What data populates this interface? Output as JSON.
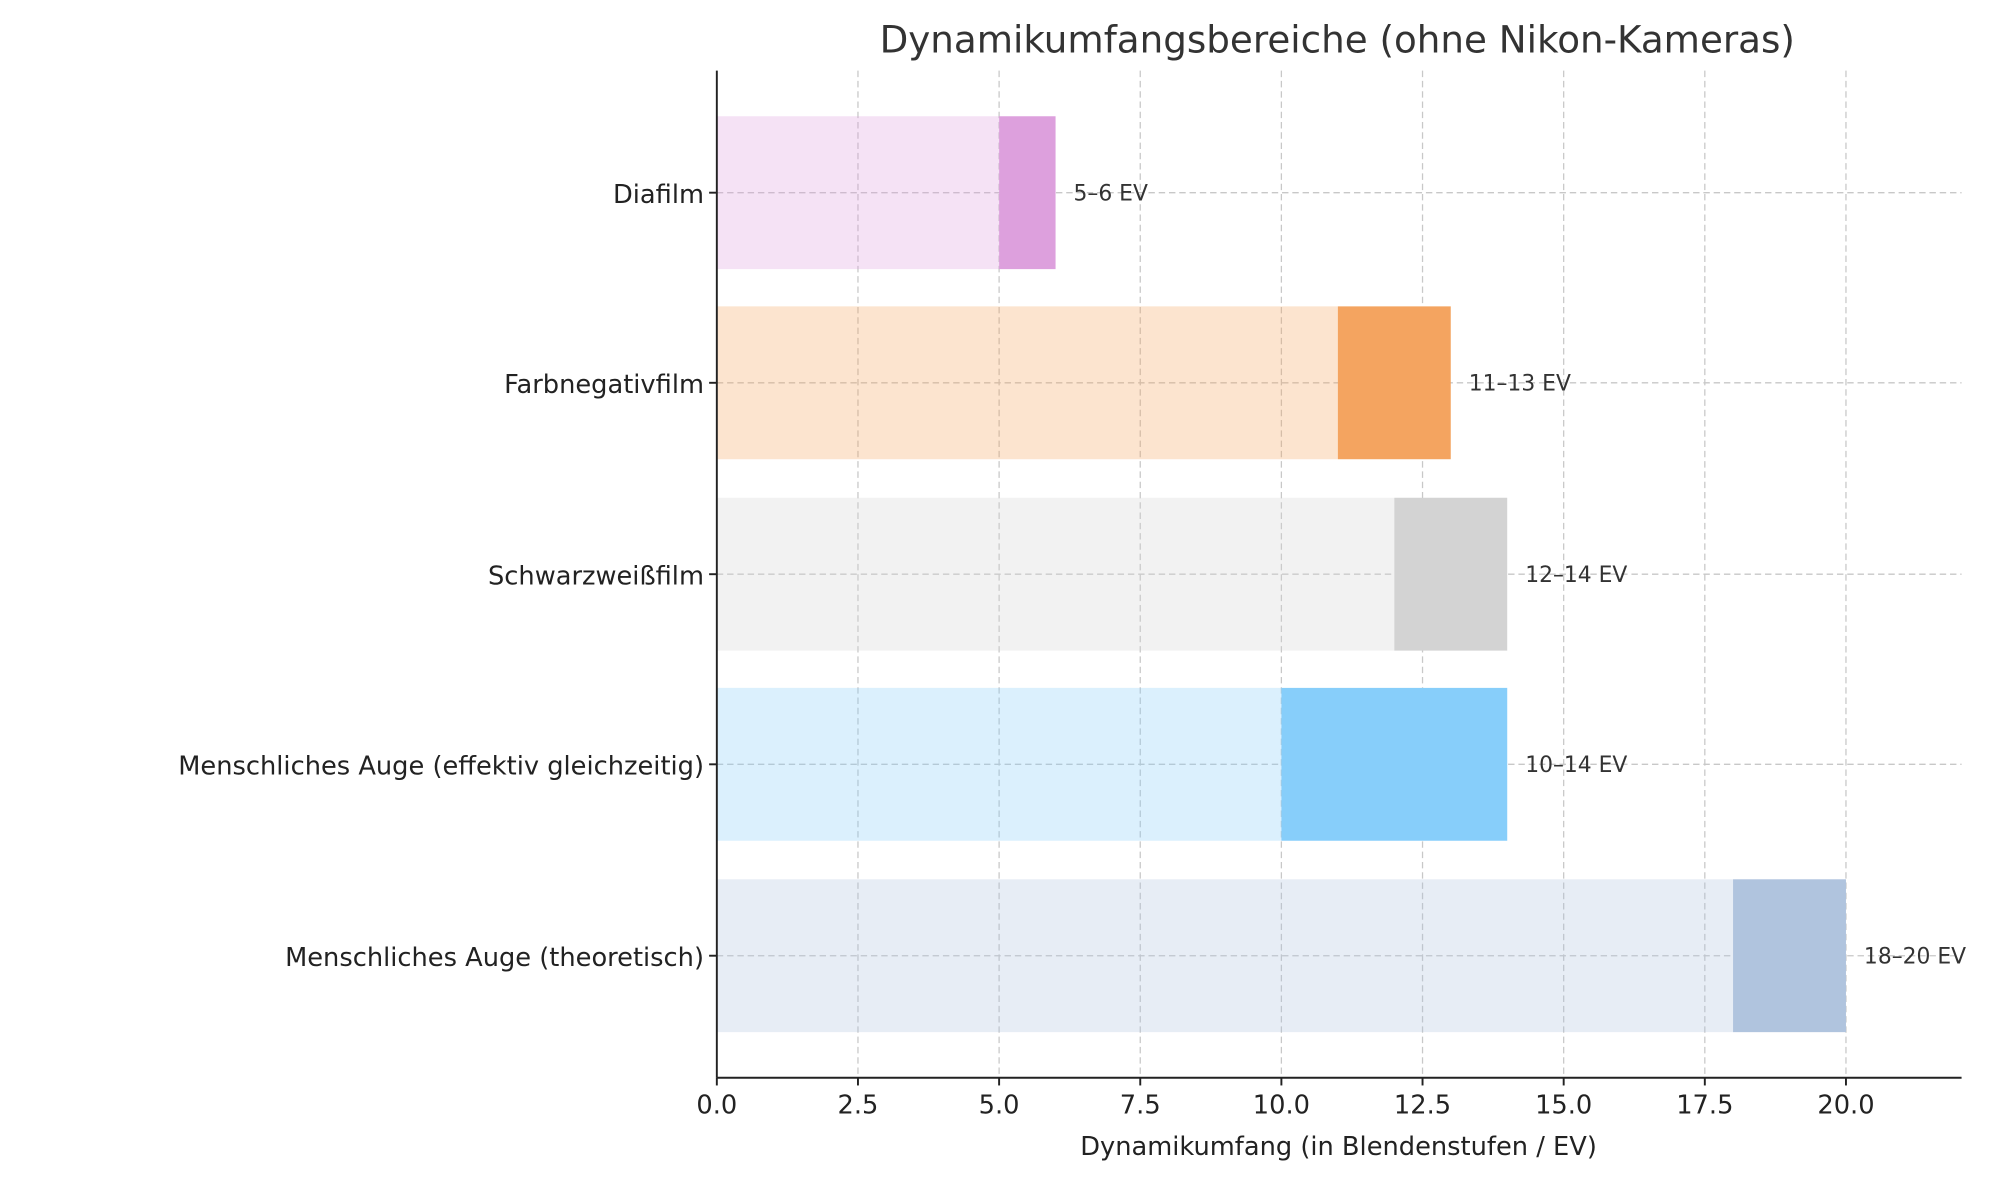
{
  "chart_data": {
    "type": "bar",
    "orientation": "horizontal-range",
    "title": "Dynamikumfangsbereiche (ohne Nikon-Kameras)",
    "xlabel": "Dynamikumfang (in Blendenstufen / EV)",
    "ylabel": "",
    "xlim": [
      0,
      22
    ],
    "xticks": [
      "0.0",
      "2.5",
      "5.0",
      "7.5",
      "10.0",
      "12.5",
      "15.0",
      "17.5",
      "20.0"
    ],
    "grid": true,
    "categories": [
      "Diafilm",
      "Farbnegativfilm",
      "Schwarzweißfilm",
      "Menschliches Auge (effektiv gleichzeitig)",
      "Menschliches Auge (theoretisch)"
    ],
    "series": [
      {
        "name": "min",
        "values": [
          5,
          11,
          12,
          10,
          18
        ]
      },
      {
        "name": "max",
        "values": [
          6,
          13,
          14,
          14,
          20
        ]
      }
    ],
    "labels": [
      "5–6 EV",
      "11–13 EV",
      "12–14 EV",
      "10–14 EV",
      "18–20 EV"
    ],
    "colors": [
      "#dda0dd",
      "#f4a460",
      "#d3d3d3",
      "#87cefa",
      "#b0c4de"
    ]
  }
}
